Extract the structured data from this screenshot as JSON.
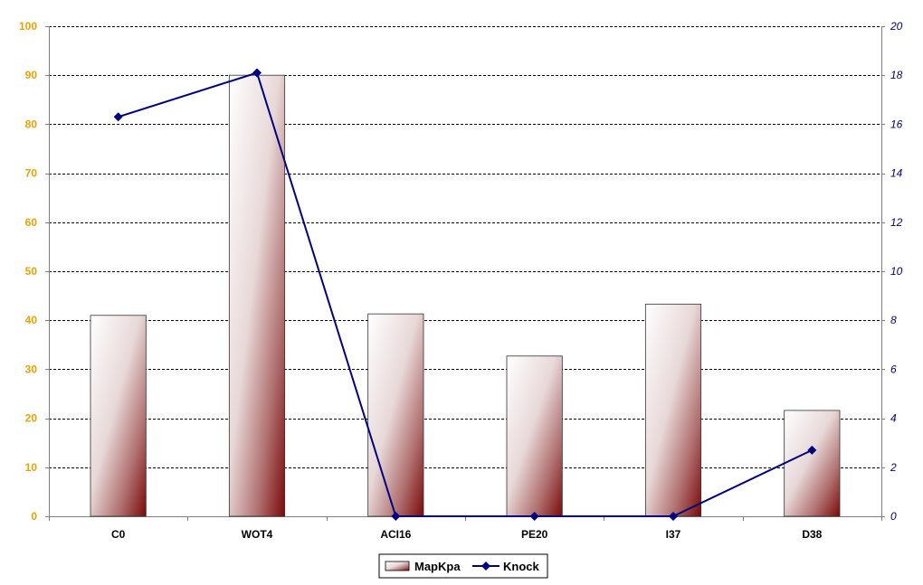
{
  "chart_data": {
    "type": "bar",
    "categories": [
      "C0",
      "WOT4",
      "ACI16",
      "PE20",
      "I37",
      "D38"
    ],
    "series": [
      {
        "name": "MapKpa",
        "type": "bar",
        "axis": "left",
        "values": [
          41,
          90,
          41.3,
          32.7,
          43.3,
          21.6
        ]
      },
      {
        "name": "Knock",
        "type": "line",
        "axis": "right",
        "values": [
          16.3,
          18.1,
          0,
          0,
          0,
          2.7
        ]
      }
    ],
    "y_left": {
      "ylim": [
        0,
        100
      ],
      "ticks": [
        "0",
        "10",
        "20",
        "30",
        "40",
        "50",
        "60",
        "70",
        "80",
        "90",
        "100"
      ]
    },
    "y_right": {
      "ylim": [
        0,
        20
      ],
      "ticks": [
        "0",
        "2",
        "4",
        "6",
        "8",
        "10",
        "12",
        "14",
        "16",
        "18",
        "20"
      ]
    },
    "grid": true,
    "legend": "bottom-center",
    "colors": {
      "left_tick": "#F0A000",
      "right_tick": "#000080",
      "bar_light": "#FFFFFF",
      "bar_dark": "#7A0A0A",
      "line": "#000080",
      "grid": "#000000"
    }
  }
}
